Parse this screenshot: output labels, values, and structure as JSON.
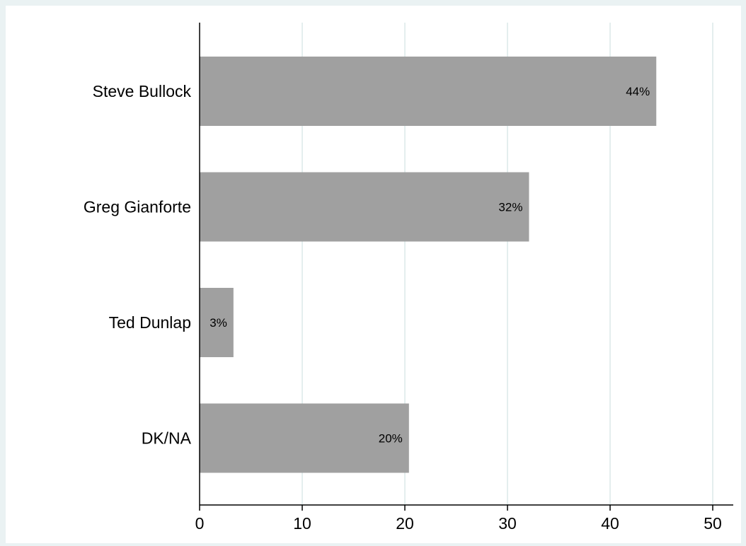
{
  "chart_data": {
    "type": "bar",
    "orientation": "horizontal",
    "categories": [
      "Steve Bullock",
      "Greg Gianforte",
      "Ted Dunlap",
      "DK/NA"
    ],
    "values": [
      44.5,
      32.1,
      3.3,
      20.4
    ],
    "data_labels": [
      "44%",
      "32%",
      "3%",
      "20%"
    ],
    "xlim": [
      0,
      52
    ],
    "xticks": [
      0,
      10,
      20,
      30,
      40,
      50
    ],
    "title": "",
    "xlabel": "",
    "ylabel": "",
    "grid": true,
    "legend": "none",
    "colors": {
      "bar": "#a0a0a0",
      "plot_background": "#ffffff",
      "page_background": "#eaf2f3",
      "grid": "#e4eeee",
      "axis": "#000000"
    }
  }
}
